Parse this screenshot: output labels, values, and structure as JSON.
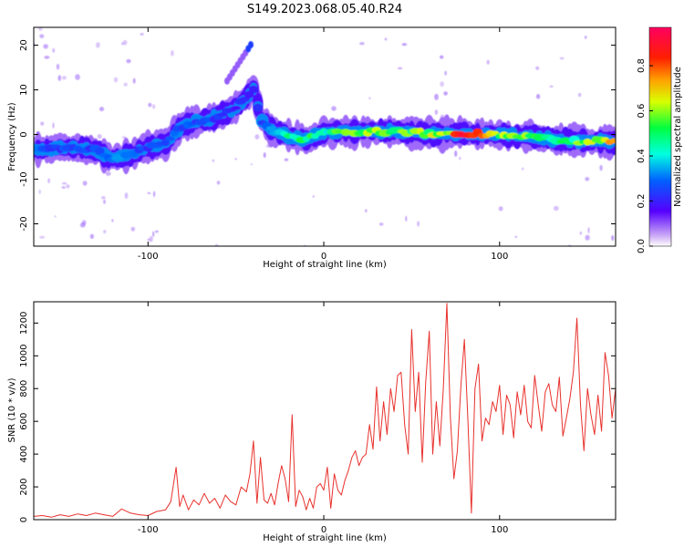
{
  "title": "S149.2023.068.05.40.R24",
  "chart_data": [
    {
      "type": "heatmap",
      "xlabel": "Height of straight line (km)",
      "ylabel": "Frequency (Hz)",
      "xlim": [
        -165,
        166
      ],
      "ylim": [
        -25,
        24
      ],
      "x_ticks": [
        -100,
        0,
        100
      ],
      "y_ticks": [
        20,
        10,
        0,
        -10,
        -20
      ],
      "colorbar": {
        "label": "Normalized spectral amplitude",
        "range": [
          0,
          0.97
        ],
        "ticks": [
          0.0,
          0.2,
          0.4,
          0.6,
          0.8
        ]
      },
      "ridge": {
        "x": [
          -165,
          -150,
          -140,
          -130,
          -120,
          -110,
          -100,
          -90,
          -80,
          -70,
          -60,
          -50,
          -45,
          -40,
          -38,
          -35,
          -30,
          -20,
          -10,
          0,
          20,
          40,
          60,
          80,
          100,
          120,
          140,
          166
        ],
        "y": [
          -3.5,
          -3,
          -3.2,
          -3.5,
          -5.5,
          -4.5,
          -3,
          -2,
          2,
          3,
          4,
          6,
          8,
          10,
          7,
          3,
          1,
          -0.5,
          -1,
          0.5,
          0.5,
          0.8,
          0.2,
          0.2,
          0,
          -0.5,
          -1.5,
          -1.5
        ]
      },
      "amplitude_along_ridge": {
        "x": [
          -165,
          -150,
          -130,
          -120,
          -100,
          -80,
          -60,
          -40,
          -20,
          0,
          20,
          40,
          60,
          80,
          100,
          120,
          140,
          166
        ],
        "value": [
          0.3,
          0.25,
          0.28,
          0.32,
          0.25,
          0.3,
          0.25,
          0.2,
          0.55,
          0.45,
          0.65,
          0.55,
          0.6,
          0.85,
          0.6,
          0.55,
          0.5,
          0.75
        ]
      }
    },
    {
      "type": "line",
      "xlabel": "Height of straight line (km)",
      "ylabel": "SNR (10 * v/v)",
      "xlim": [
        -165,
        166
      ],
      "ylim": [
        0,
        1330
      ],
      "x_ticks": [
        -100,
        0,
        100
      ],
      "y_ticks": [
        0,
        200,
        400,
        600,
        800,
        1000,
        1200
      ],
      "series": [
        {
          "color": "#e8312c",
          "x": [
            -165,
            -160,
            -155,
            -150,
            -145,
            -140,
            -135,
            -130,
            -125,
            -120,
            -115,
            -110,
            -105,
            -100,
            -95,
            -90,
            -87,
            -84,
            -82,
            -80,
            -77,
            -74,
            -71,
            -68,
            -65,
            -62,
            -59,
            -56,
            -53,
            -50,
            -47,
            -44,
            -42,
            -40,
            -38,
            -36,
            -34,
            -32,
            -30,
            -28,
            -26,
            -24,
            -22,
            -20,
            -18,
            -16,
            -14,
            -12,
            -10,
            -8,
            -6,
            -4,
            -2,
            0,
            2,
            4,
            6,
            8,
            10,
            12,
            14,
            16,
            18,
            20,
            22,
            24,
            26,
            28,
            30,
            32,
            34,
            36,
            38,
            40,
            42,
            44,
            46,
            48,
            50,
            52,
            54,
            56,
            58,
            60,
            62,
            64,
            66,
            68,
            70,
            72,
            74,
            76,
            78,
            80,
            82,
            84,
            86,
            88,
            90,
            92,
            94,
            96,
            98,
            100,
            102,
            104,
            106,
            108,
            110,
            112,
            114,
            116,
            118,
            120,
            122,
            124,
            126,
            128,
            130,
            132,
            134,
            136,
            138,
            140,
            142,
            144,
            146,
            148,
            150,
            152,
            154,
            156,
            158,
            160,
            162,
            164,
            166
          ],
          "y": [
            20,
            25,
            15,
            30,
            20,
            35,
            25,
            40,
            30,
            20,
            65,
            40,
            30,
            25,
            50,
            60,
            110,
            320,
            80,
            150,
            60,
            120,
            90,
            160,
            100,
            130,
            70,
            150,
            110,
            90,
            200,
            170,
            280,
            480,
            100,
            380,
            120,
            100,
            160,
            90,
            220,
            330,
            250,
            110,
            640,
            80,
            180,
            140,
            60,
            130,
            70,
            200,
            220,
            180,
            320,
            70,
            280,
            180,
            150,
            240,
            300,
            380,
            420,
            330,
            380,
            400,
            580,
            430,
            810,
            480,
            720,
            520,
            800,
            660,
            880,
            900,
            580,
            400,
            1160,
            660,
            900,
            350,
            840,
            1150,
            400,
            720,
            450,
            800,
            1320,
            630,
            250,
            420,
            820,
            1100,
            600,
            40,
            800,
            950,
            480,
            620,
            580,
            720,
            660,
            820,
            520,
            760,
            700,
            500,
            780,
            640,
            820,
            600,
            560,
            880,
            700,
            540,
            780,
            830,
            700,
            660,
            870,
            510,
            620,
            740,
            900,
            1230,
            700,
            420,
            800,
            640,
            520,
            760,
            540,
            1020,
            880,
            620,
            800
          ]
        }
      ]
    }
  ]
}
